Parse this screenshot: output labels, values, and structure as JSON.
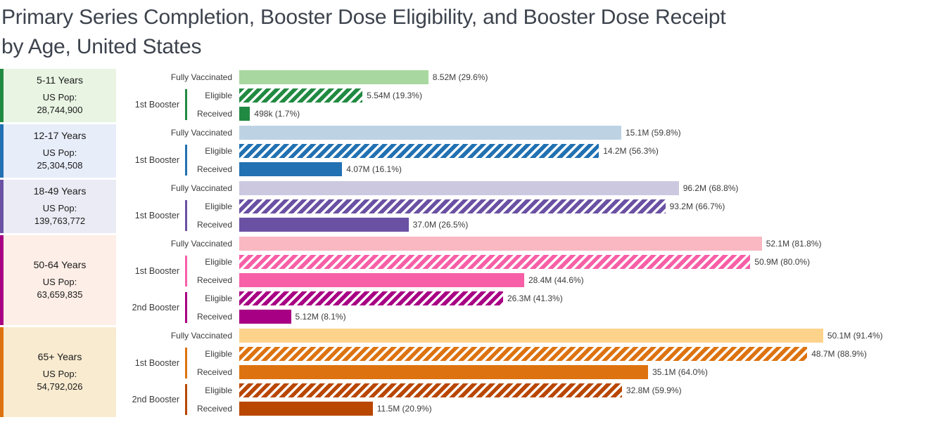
{
  "header": {
    "title_line1": "Primary Series Completion, Booster Dose Eligibility, and Booster Dose Receipt",
    "title_line2": "by Age, United States"
  },
  "chart_data": {
    "type": "bar",
    "orientation": "horizontal",
    "unit": "percent of age-group population",
    "x_range": [
      0,
      100
    ],
    "grid": false,
    "legend": "none",
    "groups": [
      {
        "name": "5-11 Years",
        "pop_prefix": "US Pop:",
        "population": "28,744,900",
        "colors": {
          "stripe": "#218a42",
          "box_bg": "#e9f4e3"
        },
        "sections": [
          {
            "type": "single",
            "row_label": "Fully Vaccinated",
            "bar": {
              "style": "solid",
              "color": "#a8d8a0",
              "percent": 29.6,
              "value_m": 8.52,
              "value_label": "8.52M (29.6%)"
            }
          },
          {
            "type": "pair",
            "bracket_label": "1st Booster",
            "bracket_color": "#218a42",
            "rows": [
              {
                "row_label": "Eligible",
                "bar": {
                  "style": "hatched",
                  "color": "#218a42",
                  "percent": 19.3,
                  "value_m": 5.54,
                  "value_label": "5.54M (19.3%)"
                }
              },
              {
                "row_label": "Received",
                "bar": {
                  "style": "solid",
                  "color": "#218a42",
                  "percent": 1.7,
                  "value_m": 0.498,
                  "value_label": "498k (1.7%)"
                }
              }
            ]
          }
        ]
      },
      {
        "name": "12-17 Years",
        "pop_prefix": "US Pop:",
        "population": "25,304,508",
        "colors": {
          "stripe": "#2271b2",
          "box_bg": "#e8edfa"
        },
        "sections": [
          {
            "type": "single",
            "row_label": "Fully Vaccinated",
            "bar": {
              "style": "solid",
              "color": "#bdd3e4",
              "percent": 59.8,
              "value_m": 15.1,
              "value_label": "15.1M (59.8%)"
            }
          },
          {
            "type": "pair",
            "bracket_label": "1st Booster",
            "bracket_color": "#2271b2",
            "rows": [
              {
                "row_label": "Eligible",
                "bar": {
                  "style": "hatched",
                  "color": "#2271b2",
                  "percent": 56.3,
                  "value_m": 14.2,
                  "value_label": "14.2M (56.3%)"
                }
              },
              {
                "row_label": "Received",
                "bar": {
                  "style": "solid",
                  "color": "#2271b2",
                  "percent": 16.1,
                  "value_m": 4.07,
                  "value_label": "4.07M (16.1%)"
                }
              }
            ]
          }
        ]
      },
      {
        "name": "18-49 Years",
        "pop_prefix": "US Pop:",
        "population": "139,763,772",
        "colors": {
          "stripe": "#6a51a3",
          "box_bg": "#ebebf5"
        },
        "sections": [
          {
            "type": "single",
            "row_label": "Fully Vaccinated",
            "bar": {
              "style": "solid",
              "color": "#cbc8e0",
              "percent": 68.8,
              "value_m": 96.2,
              "value_label": "96.2M (68.8%)"
            }
          },
          {
            "type": "pair",
            "bracket_label": "1st Booster",
            "bracket_color": "#6a51a3",
            "rows": [
              {
                "row_label": "Eligible",
                "bar": {
                  "style": "hatched",
                  "color": "#6a51a3",
                  "percent": 66.7,
                  "value_m": 93.2,
                  "value_label": "93.2M (66.7%)"
                }
              },
              {
                "row_label": "Received",
                "bar": {
                  "style": "solid",
                  "color": "#6a51a3",
                  "percent": 26.5,
                  "value_m": 37.0,
                  "value_label": "37.0M (26.5%)"
                }
              }
            ]
          }
        ]
      },
      {
        "name": "50-64 Years",
        "pop_prefix": "US Pop:",
        "population": "63,659,835",
        "colors": {
          "stripe": "#a80084",
          "box_bg": "#fdeee7"
        },
        "sections": [
          {
            "type": "single",
            "row_label": "Fully Vaccinated",
            "bar": {
              "style": "solid",
              "color": "#f9b8c2",
              "percent": 81.8,
              "value_m": 52.1,
              "value_label": "52.1M (81.8%)"
            }
          },
          {
            "type": "pair",
            "bracket_label": "1st Booster",
            "bracket_color": "#f75fa7",
            "rows": [
              {
                "row_label": "Eligible",
                "bar": {
                  "style": "hatched",
                  "color": "#f75fa7",
                  "percent": 80.0,
                  "value_m": 50.9,
                  "value_label": "50.9M (80.0%)"
                }
              },
              {
                "row_label": "Received",
                "bar": {
                  "style": "solid",
                  "color": "#f75fa7",
                  "percent": 44.6,
                  "value_m": 28.4,
                  "value_label": "28.4M (44.6%)"
                }
              }
            ]
          },
          {
            "type": "pair",
            "bracket_label": "2nd Booster",
            "bracket_color": "#a80084",
            "rows": [
              {
                "row_label": "Eligible",
                "bar": {
                  "style": "hatched",
                  "color": "#a80084",
                  "percent": 41.3,
                  "value_m": 26.3,
                  "value_label": "26.3M (41.3%)"
                }
              },
              {
                "row_label": "Received",
                "bar": {
                  "style": "solid",
                  "color": "#a80084",
                  "percent": 8.1,
                  "value_m": 5.12,
                  "value_label": "5.12M (8.1%)"
                }
              }
            ]
          }
        ]
      },
      {
        "name": "65+ Years",
        "pop_prefix": "US Pop:",
        "population": "54,792,026",
        "colors": {
          "stripe": "#dd7310",
          "box_bg": "#f9ebd0"
        },
        "sections": [
          {
            "type": "single",
            "row_label": "Fully Vaccinated",
            "bar": {
              "style": "solid",
              "color": "#fdd38c",
              "percent": 91.4,
              "value_m": 50.1,
              "value_label": "50.1M (91.4%)"
            }
          },
          {
            "type": "pair",
            "bracket_label": "1st Booster",
            "bracket_color": "#dd7310",
            "rows": [
              {
                "row_label": "Eligible",
                "bar": {
                  "style": "hatched",
                  "color": "#dd7310",
                  "percent": 88.9,
                  "value_m": 48.7,
                  "value_label": "48.7M (88.9%)"
                }
              },
              {
                "row_label": "Received",
                "bar": {
                  "style": "solid",
                  "color": "#dd7310",
                  "percent": 64.0,
                  "value_m": 35.1,
                  "value_label": "35.1M (64.0%)"
                }
              }
            ]
          },
          {
            "type": "pair",
            "bracket_label": "2nd Booster",
            "bracket_color": "#b94701",
            "rows": [
              {
                "row_label": "Eligible",
                "bar": {
                  "style": "hatched",
                  "color": "#b94701",
                  "percent": 59.9,
                  "value_m": 32.8,
                  "value_label": "32.8M (59.9%)"
                }
              },
              {
                "row_label": "Received",
                "bar": {
                  "style": "solid",
                  "color": "#b94701",
                  "percent": 20.9,
                  "value_m": 11.5,
                  "value_label": "11.5M (20.9%)"
                }
              }
            ]
          }
        ]
      }
    ]
  }
}
